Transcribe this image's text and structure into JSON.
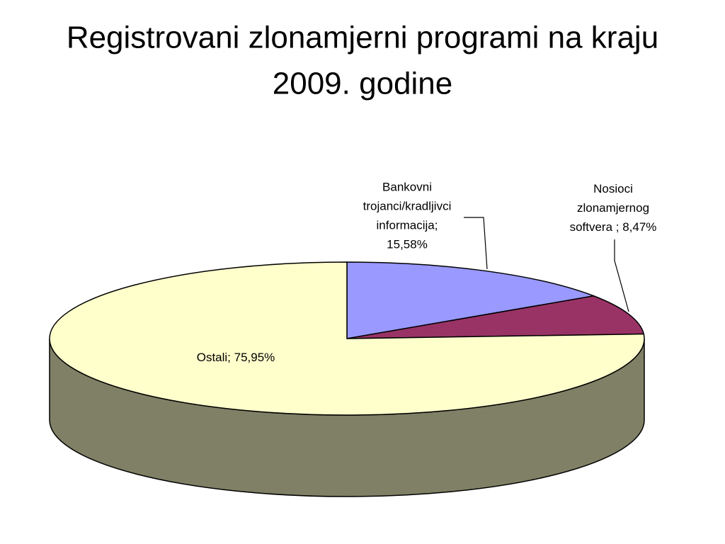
{
  "chart_data": {
    "type": "pie",
    "title": "Registrovani zlonamjerni programi na kraju 2009. godine",
    "values": [
      15.58,
      8.47,
      75.95
    ],
    "value_labels": [
      "Bankovni trojanci/kradljivci informacija; 15,58%",
      "Nosioci zlonamjernog softvera ; 8,47%",
      "Ostali; 75,95%"
    ],
    "colors": [
      "#9999ff",
      "#993366",
      "#ffffcc"
    ]
  }
}
